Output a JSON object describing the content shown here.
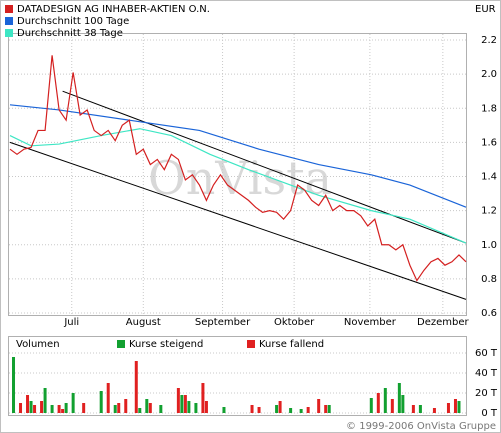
{
  "chart_data": [
    {
      "type": "line",
      "title": "DATADESIGN AG INHABER-AKTIEN O.N.",
      "unit": "EUR",
      "watermark": "OnVista",
      "xlim": [
        0,
        130
      ],
      "xticks": [
        {
          "value": 17.6,
          "label": "Juli"
        },
        {
          "value": 38,
          "label": "August"
        },
        {
          "value": 60.6,
          "label": "September"
        },
        {
          "value": 81,
          "label": "Oktober"
        },
        {
          "value": 102.6,
          "label": "November"
        },
        {
          "value": 123.4,
          "label": "Dezember"
        }
      ],
      "ylim": [
        0.6,
        2.2
      ],
      "yticks": [
        0.6,
        0.8,
        {
          "value": 1,
          "label": "1.0"
        },
        1.2,
        1.4,
        1.6,
        1.8,
        {
          "value": 2,
          "label": "2.0"
        },
        2.2
      ],
      "grid": true,
      "series": [
        {
          "name": "DATADESIGN AG INHABER-AKTIEN O.N.",
          "color": "#d42020",
          "x": [
            0,
            2,
            4,
            6,
            8,
            10,
            12,
            14,
            16,
            18,
            20,
            22,
            24,
            26,
            28,
            30,
            32,
            34,
            36,
            38,
            40,
            42,
            44,
            46,
            48,
            50,
            52,
            54,
            56,
            58,
            60,
            62,
            64,
            66,
            68,
            70,
            72,
            74,
            76,
            78,
            80,
            82,
            84,
            86,
            88,
            90,
            92,
            94,
            96,
            98,
            100,
            102,
            104,
            106,
            108,
            110,
            112,
            114,
            116,
            118,
            120,
            122,
            124,
            126,
            128,
            130
          ],
          "values": [
            1.56,
            1.53,
            1.56,
            1.57,
            1.67,
            1.67,
            2.11,
            1.79,
            1.73,
            2.01,
            1.76,
            1.79,
            1.67,
            1.64,
            1.67,
            1.61,
            1.7,
            1.73,
            1.53,
            1.56,
            1.47,
            1.5,
            1.44,
            1.53,
            1.5,
            1.38,
            1.41,
            1.35,
            1.26,
            1.35,
            1.41,
            1.35,
            1.32,
            1.29,
            1.26,
            1.22,
            1.19,
            1.2,
            1.19,
            1.15,
            1.2,
            1.35,
            1.32,
            1.26,
            1.23,
            1.29,
            1.2,
            1.23,
            1.2,
            1.2,
            1.17,
            1.11,
            1.15,
            1.0,
            1.0,
            0.97,
            1.0,
            0.88,
            0.79,
            0.85,
            0.9,
            0.92,
            0.88,
            0.9,
            0.94,
            0.9
          ]
        },
        {
          "name": "Durchschnitt 100 Tage",
          "color": "#1a64d8",
          "x": [
            0,
            14,
            34,
            54,
            71,
            88,
            103,
            114,
            130
          ],
          "values": [
            1.82,
            1.79,
            1.73,
            1.67,
            1.56,
            1.47,
            1.41,
            1.35,
            1.22
          ]
        },
        {
          "name": "Durchschnitt 38 Tage",
          "color": "#3ee6c4",
          "x": [
            0,
            6,
            14,
            26,
            37,
            46,
            57,
            68,
            80,
            88,
            103,
            114,
            130
          ],
          "values": [
            1.64,
            1.58,
            1.59,
            1.64,
            1.68,
            1.64,
            1.53,
            1.44,
            1.35,
            1.29,
            1.2,
            1.15,
            1.01
          ]
        }
      ],
      "trend_lines": [
        {
          "color": "#000000",
          "x": [
            15,
            130
          ],
          "values": [
            1.9,
            1.01
          ]
        },
        {
          "color": "#000000",
          "x": [
            0,
            130
          ],
          "values": [
            1.6,
            0.68
          ]
        }
      ]
    },
    {
      "type": "bar",
      "title": "Volumen",
      "xlim": [
        0,
        130
      ],
      "ylim": [
        0,
        60
      ],
      "yticks": [
        {
          "value": 0,
          "label": "0 T"
        },
        {
          "value": 20,
          "label": "20 T"
        },
        {
          "value": 40,
          "label": "40 T"
        },
        {
          "value": 60,
          "label": "60 T"
        }
      ],
      "series": [
        {
          "name": "Kurse steigend",
          "color": "#12a030",
          "x": [
            1,
            6,
            10,
            12,
            16,
            18,
            26,
            30,
            37,
            39,
            43,
            49,
            51,
            53,
            61,
            76,
            80,
            83,
            91,
            103,
            107,
            111,
            112,
            117,
            128
          ],
          "values": [
            56,
            12,
            25,
            8,
            10,
            20,
            22,
            8,
            5,
            14,
            8,
            18,
            12,
            10,
            6,
            8,
            5,
            4,
            8,
            15,
            25,
            30,
            18,
            8,
            12
          ]
        },
        {
          "name": "Kurse fallend",
          "color": "#e02020",
          "x": [
            3,
            5,
            7,
            9,
            14,
            15,
            21,
            28,
            31,
            33,
            36,
            40,
            48,
            50,
            55,
            56,
            69,
            71,
            77,
            85,
            88,
            90,
            105,
            109,
            115,
            121,
            125,
            127
          ],
          "values": [
            10,
            18,
            8,
            12,
            8,
            4,
            10,
            30,
            10,
            14,
            52,
            10,
            25,
            18,
            30,
            12,
            8,
            6,
            12,
            6,
            14,
            8,
            20,
            14,
            8,
            5,
            10,
            14
          ]
        }
      ]
    }
  ],
  "footer": "© 1999-2006 OnVista Gruppe"
}
